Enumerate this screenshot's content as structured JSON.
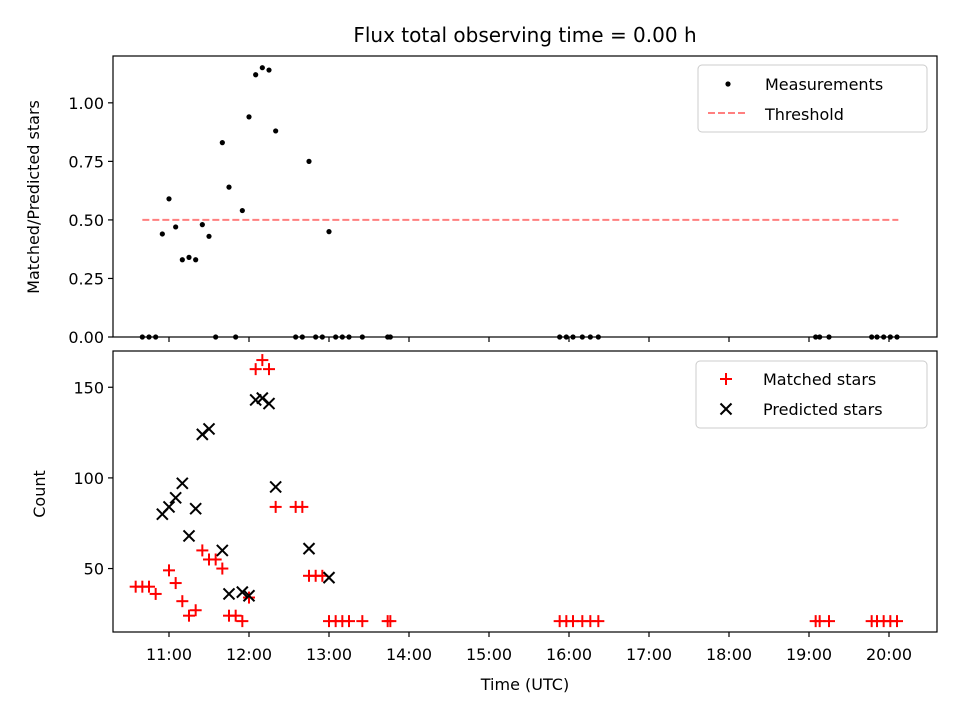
{
  "chart_data": [
    {
      "type": "scatter",
      "title": "Flux total observing time = 0.00 h",
      "xlabel": "",
      "ylabel": "Matched/Predicted stars",
      "ylim": [
        0,
        1.2
      ],
      "xlim_hours": [
        10.3,
        20.6
      ],
      "yticks": [
        0.0,
        0.25,
        0.5,
        0.75,
        1.0
      ],
      "ytick_labels": [
        "0.00",
        "0.25",
        "0.50",
        "0.75",
        "1.00"
      ],
      "grid": false,
      "legend_position": "upper right",
      "legend": [
        {
          "label": "Measurements",
          "marker": "dot",
          "color": "#000000"
        },
        {
          "label": "Threshold",
          "marker": "dashed-line",
          "color": "#ff7f7f"
        }
      ],
      "threshold": {
        "y": 0.5,
        "x_start": "10:40",
        "x_end": "20:07",
        "color": "#ff7f7f"
      },
      "series": [
        {
          "name": "Measurements",
          "color": "#000000",
          "points": [
            {
              "x": "10:40",
              "y": 0.0
            },
            {
              "x": "10:45",
              "y": 0.0
            },
            {
              "x": "10:50",
              "y": 0.0
            },
            {
              "x": "10:55",
              "y": 0.44
            },
            {
              "x": "11:00",
              "y": 0.59
            },
            {
              "x": "11:05",
              "y": 0.47
            },
            {
              "x": "11:10",
              "y": 0.33
            },
            {
              "x": "11:15",
              "y": 0.34
            },
            {
              "x": "11:20",
              "y": 0.33
            },
            {
              "x": "11:25",
              "y": 0.48
            },
            {
              "x": "11:30",
              "y": 0.43
            },
            {
              "x": "11:35",
              "y": 0.0
            },
            {
              "x": "11:40",
              "y": 0.83
            },
            {
              "x": "11:45",
              "y": 0.64
            },
            {
              "x": "11:50",
              "y": 0.0
            },
            {
              "x": "11:55",
              "y": 0.54
            },
            {
              "x": "12:00",
              "y": 0.94
            },
            {
              "x": "12:05",
              "y": 1.12
            },
            {
              "x": "12:10",
              "y": 1.15
            },
            {
              "x": "12:15",
              "y": 1.14
            },
            {
              "x": "12:20",
              "y": 0.88
            },
            {
              "x": "12:35",
              "y": 0.0
            },
            {
              "x": "12:40",
              "y": 0.0
            },
            {
              "x": "12:45",
              "y": 0.75
            },
            {
              "x": "12:50",
              "y": 0.0
            },
            {
              "x": "12:55",
              "y": 0.0
            },
            {
              "x": "13:00",
              "y": 0.45
            },
            {
              "x": "13:05",
              "y": 0.0
            },
            {
              "x": "13:10",
              "y": 0.0
            },
            {
              "x": "13:15",
              "y": 0.0
            },
            {
              "x": "13:25",
              "y": 0.0
            },
            {
              "x": "13:44",
              "y": 0.0
            },
            {
              "x": "13:46",
              "y": 0.0
            },
            {
              "x": "15:53",
              "y": 0.0
            },
            {
              "x": "15:58",
              "y": 0.0
            },
            {
              "x": "16:03",
              "y": 0.0
            },
            {
              "x": "16:10",
              "y": 0.0
            },
            {
              "x": "16:16",
              "y": 0.0
            },
            {
              "x": "16:22",
              "y": 0.0
            },
            {
              "x": "19:05",
              "y": 0.0
            },
            {
              "x": "19:08",
              "y": 0.0
            },
            {
              "x": "19:15",
              "y": 0.0
            },
            {
              "x": "19:47",
              "y": 0.0
            },
            {
              "x": "19:51",
              "y": 0.0
            },
            {
              "x": "19:56",
              "y": 0.0
            },
            {
              "x": "20:01",
              "y": 0.0
            },
            {
              "x": "20:06",
              "y": 0.0
            }
          ]
        }
      ]
    },
    {
      "type": "scatter",
      "title": "",
      "xlabel": "Time (UTC)",
      "ylabel": "Count",
      "ylim": [
        15,
        170
      ],
      "xlim_hours": [
        10.3,
        20.6
      ],
      "yticks": [
        50,
        100,
        150
      ],
      "ytick_labels": [
        "50",
        "100",
        "150"
      ],
      "xticks": [
        "11:00",
        "12:00",
        "13:00",
        "14:00",
        "15:00",
        "16:00",
        "17:00",
        "18:00",
        "19:00",
        "20:00"
      ],
      "grid": false,
      "legend_position": "upper right",
      "legend": [
        {
          "label": "Matched stars",
          "marker": "plus",
          "color": "#ff0000"
        },
        {
          "label": "Predicted stars",
          "marker": "x",
          "color": "#000000"
        }
      ],
      "series": [
        {
          "name": "Matched stars",
          "color": "#ff0000",
          "marker": "plus",
          "points": [
            {
              "x": "10:35",
              "y": 40
            },
            {
              "x": "10:40",
              "y": 40
            },
            {
              "x": "10:45",
              "y": 40
            },
            {
              "x": "10:50",
              "y": 36
            },
            {
              "x": "11:00",
              "y": 49
            },
            {
              "x": "11:05",
              "y": 42
            },
            {
              "x": "11:10",
              "y": 32
            },
            {
              "x": "11:15",
              "y": 24
            },
            {
              "x": "11:20",
              "y": 27
            },
            {
              "x": "11:25",
              "y": 60
            },
            {
              "x": "11:30",
              "y": 55
            },
            {
              "x": "11:35",
              "y": 55
            },
            {
              "x": "11:40",
              "y": 50
            },
            {
              "x": "11:45",
              "y": 24
            },
            {
              "x": "11:50",
              "y": 24
            },
            {
              "x": "11:55",
              "y": 21
            },
            {
              "x": "12:00",
              "y": 34
            },
            {
              "x": "12:05",
              "y": 160
            },
            {
              "x": "12:10",
              "y": 165
            },
            {
              "x": "12:15",
              "y": 160
            },
            {
              "x": "12:20",
              "y": 84
            },
            {
              "x": "12:35",
              "y": 84
            },
            {
              "x": "12:40",
              "y": 84
            },
            {
              "x": "12:45",
              "y": 46
            },
            {
              "x": "12:50",
              "y": 46
            },
            {
              "x": "12:55",
              "y": 46
            },
            {
              "x": "13:00",
              "y": 21
            },
            {
              "x": "13:05",
              "y": 21
            },
            {
              "x": "13:10",
              "y": 21
            },
            {
              "x": "13:15",
              "y": 21
            },
            {
              "x": "13:25",
              "y": 21
            },
            {
              "x": "13:44",
              "y": 21
            },
            {
              "x": "13:46",
              "y": 21
            },
            {
              "x": "15:53",
              "y": 21
            },
            {
              "x": "15:58",
              "y": 21
            },
            {
              "x": "16:03",
              "y": 21
            },
            {
              "x": "16:10",
              "y": 21
            },
            {
              "x": "16:16",
              "y": 21
            },
            {
              "x": "16:22",
              "y": 21
            },
            {
              "x": "19:05",
              "y": 21
            },
            {
              "x": "19:08",
              "y": 21
            },
            {
              "x": "19:15",
              "y": 21
            },
            {
              "x": "19:47",
              "y": 21
            },
            {
              "x": "19:51",
              "y": 21
            },
            {
              "x": "19:56",
              "y": 21
            },
            {
              "x": "20:01",
              "y": 21
            },
            {
              "x": "20:06",
              "y": 21
            }
          ]
        },
        {
          "name": "Predicted stars",
          "color": "#000000",
          "marker": "x",
          "points": [
            {
              "x": "10:55",
              "y": 80
            },
            {
              "x": "11:00",
              "y": 84
            },
            {
              "x": "11:05",
              "y": 89
            },
            {
              "x": "11:10",
              "y": 97
            },
            {
              "x": "11:15",
              "y": 68
            },
            {
              "x": "11:20",
              "y": 83
            },
            {
              "x": "11:25",
              "y": 124
            },
            {
              "x": "11:30",
              "y": 127
            },
            {
              "x": "11:40",
              "y": 60
            },
            {
              "x": "11:45",
              "y": 36
            },
            {
              "x": "11:55",
              "y": 37
            },
            {
              "x": "12:00",
              "y": 35
            },
            {
              "x": "12:05",
              "y": 143
            },
            {
              "x": "12:10",
              "y": 144
            },
            {
              "x": "12:15",
              "y": 141
            },
            {
              "x": "12:20",
              "y": 95
            },
            {
              "x": "12:45",
              "y": 61
            },
            {
              "x": "13:00",
              "y": 45
            }
          ]
        }
      ]
    }
  ]
}
